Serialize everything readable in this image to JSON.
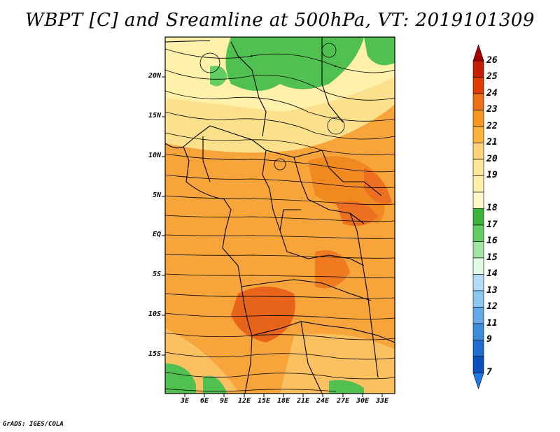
{
  "title": "WBPT [C] and Sreamline at 500hPa, VT: 2019101309",
  "credit": "GrADS: IGES/COLA",
  "lat_labels": [
    "20N",
    "15N",
    "10N",
    "5N",
    "EQ",
    "5S",
    "10S",
    "15S"
  ],
  "lon_labels": [
    "3E",
    "6E",
    "9E",
    "12E",
    "15E",
    "18E",
    "21E",
    "24E",
    "27E",
    "30E",
    "33E"
  ],
  "colorbar": {
    "levels": [
      "26",
      "25",
      "24",
      "23",
      "22",
      "21",
      "20",
      "19",
      "18",
      "17",
      "16",
      "15",
      "14",
      "13",
      "12",
      "11",
      "9",
      "7"
    ],
    "colors": [
      "#a50000",
      "#c81e00",
      "#e23c00",
      "#f06e14",
      "#f7961e",
      "#fbb43c",
      "#fdd278",
      "#fff0aa",
      "#3cb43c",
      "#64cd64",
      "#a0e6a0",
      "#e1fae1",
      "#b4dcfa",
      "#8cc8f0",
      "#64aae6",
      "#3c8cdc",
      "#1e6ed2",
      "#0a50be"
    ]
  }
}
